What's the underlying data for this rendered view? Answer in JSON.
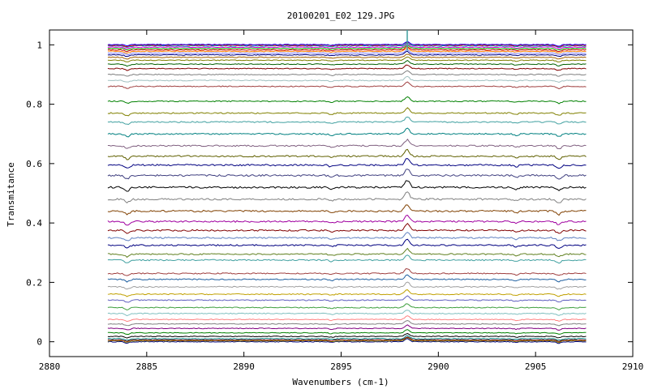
{
  "chart_data": {
    "type": "line",
    "title": "20100201_E02_129.JPG",
    "xlabel": "Wavenumbers (cm-1)",
    "ylabel": "Transmitance",
    "xlim": [
      2880,
      2910
    ],
    "ylim": [
      -0.05,
      1.05
    ],
    "x_ticks": [
      "2880",
      "2885",
      "2890",
      "2895",
      "2900",
      "2905",
      "2910"
    ],
    "y_ticks": [
      "0",
      "0.2",
      "0.4",
      "0.6",
      "0.8",
      "1"
    ],
    "grid": false,
    "legend": "none",
    "x_range_data": [
      2883.0,
      2907.6
    ],
    "series_baselines": [
      0.0,
      0.003,
      0.006,
      0.01,
      0.018,
      0.03,
      0.045,
      0.06,
      0.075,
      0.095,
      0.115,
      0.14,
      0.16,
      0.185,
      0.21,
      0.23,
      0.275,
      0.295,
      0.325,
      0.35,
      0.375,
      0.405,
      0.44,
      0.48,
      0.52,
      0.56,
      0.595,
      0.625,
      0.66,
      0.7,
      0.74,
      0.77,
      0.81,
      0.86,
      0.88,
      0.9,
      0.92,
      0.935,
      0.948,
      0.958,
      0.966,
      0.972,
      0.978,
      0.983,
      0.988,
      0.992,
      0.996,
      0.999,
      1.001
    ],
    "series_colors": [
      "#000080",
      "#808000",
      "#800000",
      "#008080",
      "#000000",
      "#008000",
      "#800080",
      "#808080",
      "#ff8080",
      "#80c0c0",
      "#40a040",
      "#6060c0",
      "#c0a000",
      "#a0a0a0",
      "#2060a0",
      "#a04040",
      "#40a0a0",
      "#608020",
      "#000080",
      "#6080c0",
      "#800000",
      "#a000a0",
      "#804000",
      "#808080",
      "#000000",
      "#404080",
      "#000080",
      "#606000",
      "#806080",
      "#008080",
      "#40a0a0",
      "#808000",
      "#008000",
      "#a04040",
      "#a0c0c0",
      "#808080",
      "#800000",
      "#006000",
      "#808000",
      "#a06000",
      "#000080",
      "#8080ff",
      "#ff8000",
      "#c00000",
      "#00c000",
      "#ff00ff",
      "#00a0a0",
      "#ff0000",
      "#0000ff"
    ],
    "features": [
      {
        "x": 2884.0,
        "type": "dip",
        "depth": 0.012
      },
      {
        "x": 2894.5,
        "type": "dip",
        "depth": 0.006
      },
      {
        "x": 2898.4,
        "type": "peak",
        "height": 0.025
      },
      {
        "x": 2904.0,
        "type": "dip",
        "depth": 0.006
      },
      {
        "x": 2906.2,
        "type": "dip",
        "depth": 0.012
      }
    ]
  }
}
